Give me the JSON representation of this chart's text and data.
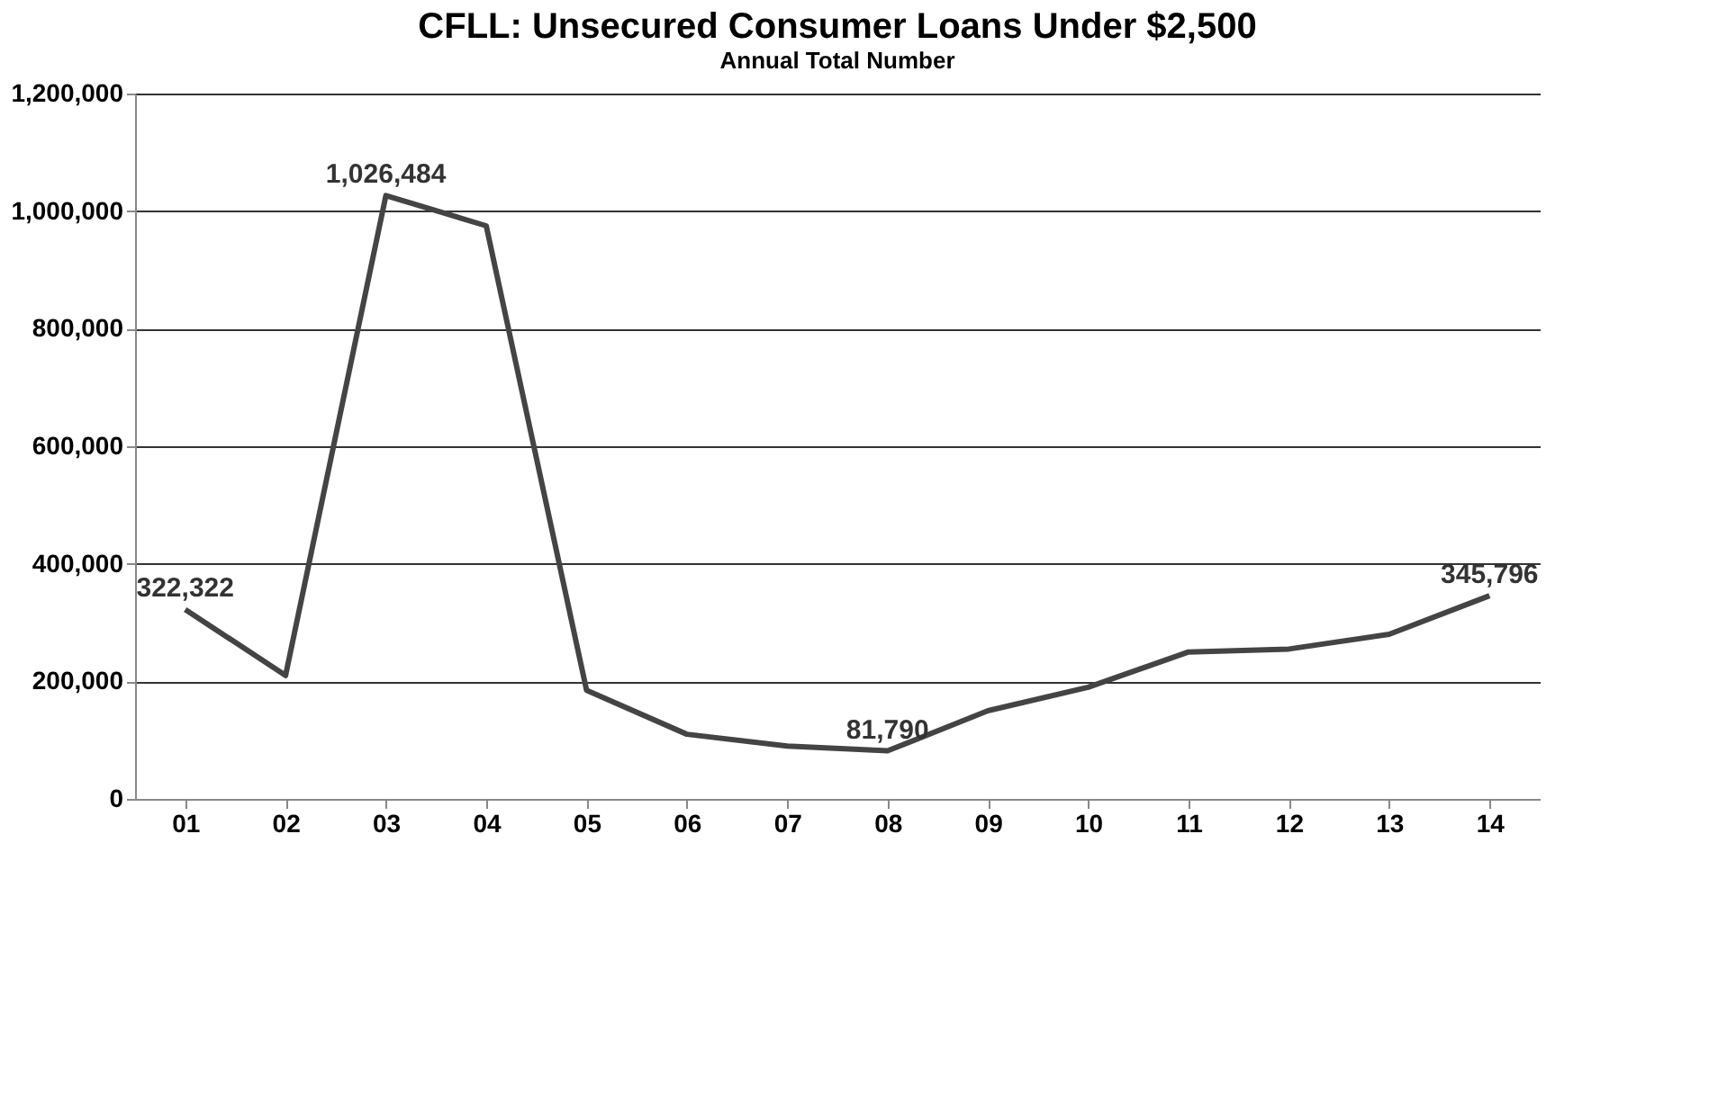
{
  "chart_data": {
    "type": "line",
    "title": "CFLL: Unsecured Consumer  Loans Under $2,500",
    "subtitle": "Annual Total Number",
    "categories": [
      "01",
      "02",
      "03",
      "04",
      "05",
      "06",
      "07",
      "08",
      "09",
      "10",
      "11",
      "12",
      "13",
      "14"
    ],
    "series": [
      {
        "color": "#444444",
        "values": [
          322322,
          210000,
          1026484,
          975000,
          185000,
          110000,
          90000,
          81790,
          150000,
          190000,
          250000,
          255000,
          280000,
          345796
        ],
        "value_labels": [
          "322,322",
          null,
          "1,026,484",
          null,
          null,
          null,
          null,
          "81,790",
          null,
          null,
          null,
          null,
          null,
          "345,796"
        ]
      }
    ],
    "ylim": [
      0,
      1200000
    ],
    "yticks": [
      0,
      {
        "value": 200000,
        "label": "200,000"
      },
      {
        "value": 400000,
        "label": "400,000"
      },
      {
        "value": 600000,
        "label": "600,000"
      },
      {
        "value": 800000,
        "label": "800,000"
      },
      {
        "value": 1000000,
        "label": "1,000,000"
      },
      {
        "value": 1200000,
        "label": "1,200,000"
      }
    ],
    "grid": "y",
    "marker": "none",
    "line_style": "solid"
  }
}
